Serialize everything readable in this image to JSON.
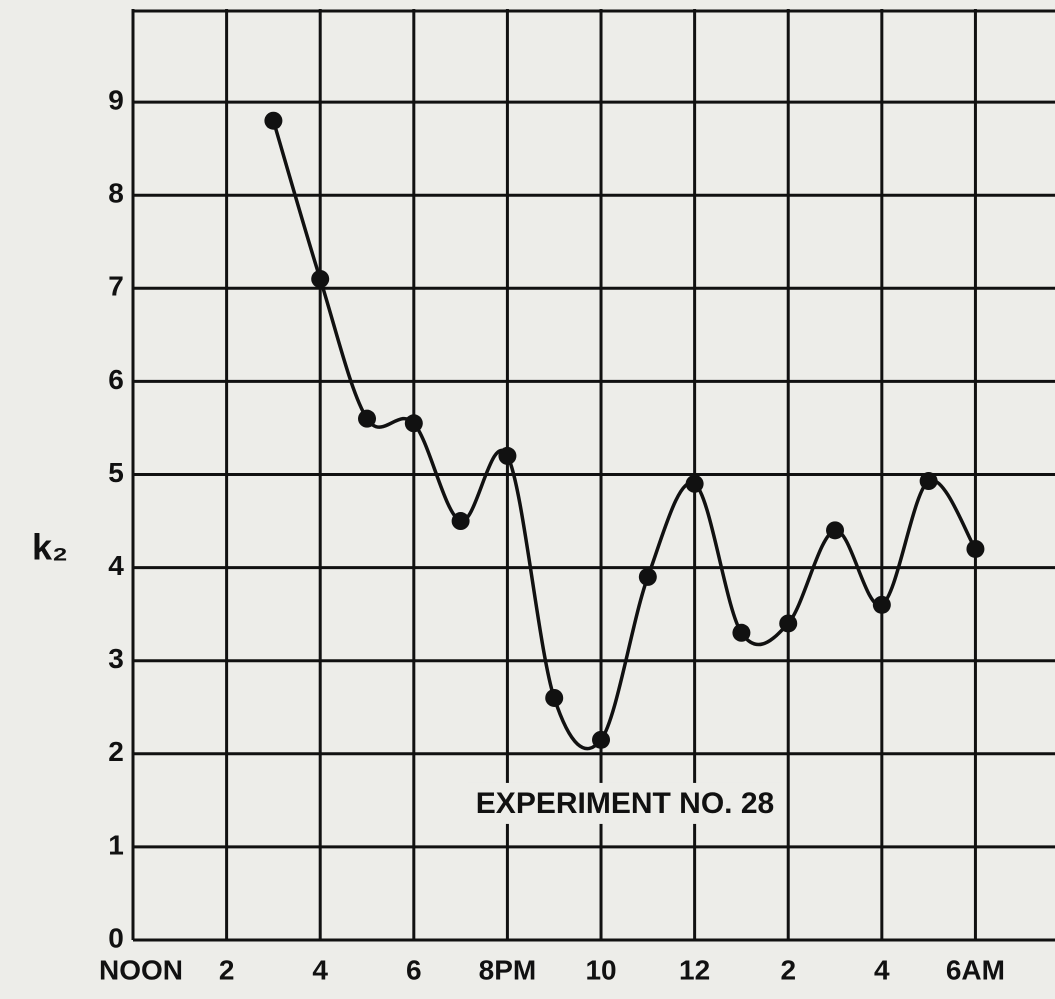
{
  "chart_data": {
    "type": "line",
    "ylabel": "k₂",
    "annotation": "EXPERIMENT NO. 28",
    "x": [
      3,
      4,
      5,
      6,
      7,
      8,
      9,
      10,
      11,
      12,
      13,
      14,
      15,
      16,
      17,
      18
    ],
    "series": [
      {
        "color": "#111111",
        "values": [
          8.8,
          7.1,
          5.6,
          5.55,
          4.5,
          5.2,
          2.6,
          2.15,
          3.9,
          4.9,
          3.3,
          3.4,
          4.4,
          3.6,
          4.93,
          4.2
        ]
      }
    ],
    "xlim": [
      0,
      19.7
    ],
    "xticks": [
      {
        "value": 0,
        "label": "NOON"
      },
      2,
      4,
      6,
      {
        "value": 8,
        "label": "8PM"
      },
      10,
      12,
      {
        "value": 14,
        "label": "2"
      },
      {
        "value": 16,
        "label": "4"
      },
      {
        "value": 18,
        "label": "6AM"
      }
    ],
    "ylim": [
      0,
      10
    ],
    "yticks": [
      0,
      1,
      2,
      3,
      4,
      5,
      6,
      7,
      8,
      9
    ],
    "grid": true,
    "smooth": true,
    "markers": true
  }
}
